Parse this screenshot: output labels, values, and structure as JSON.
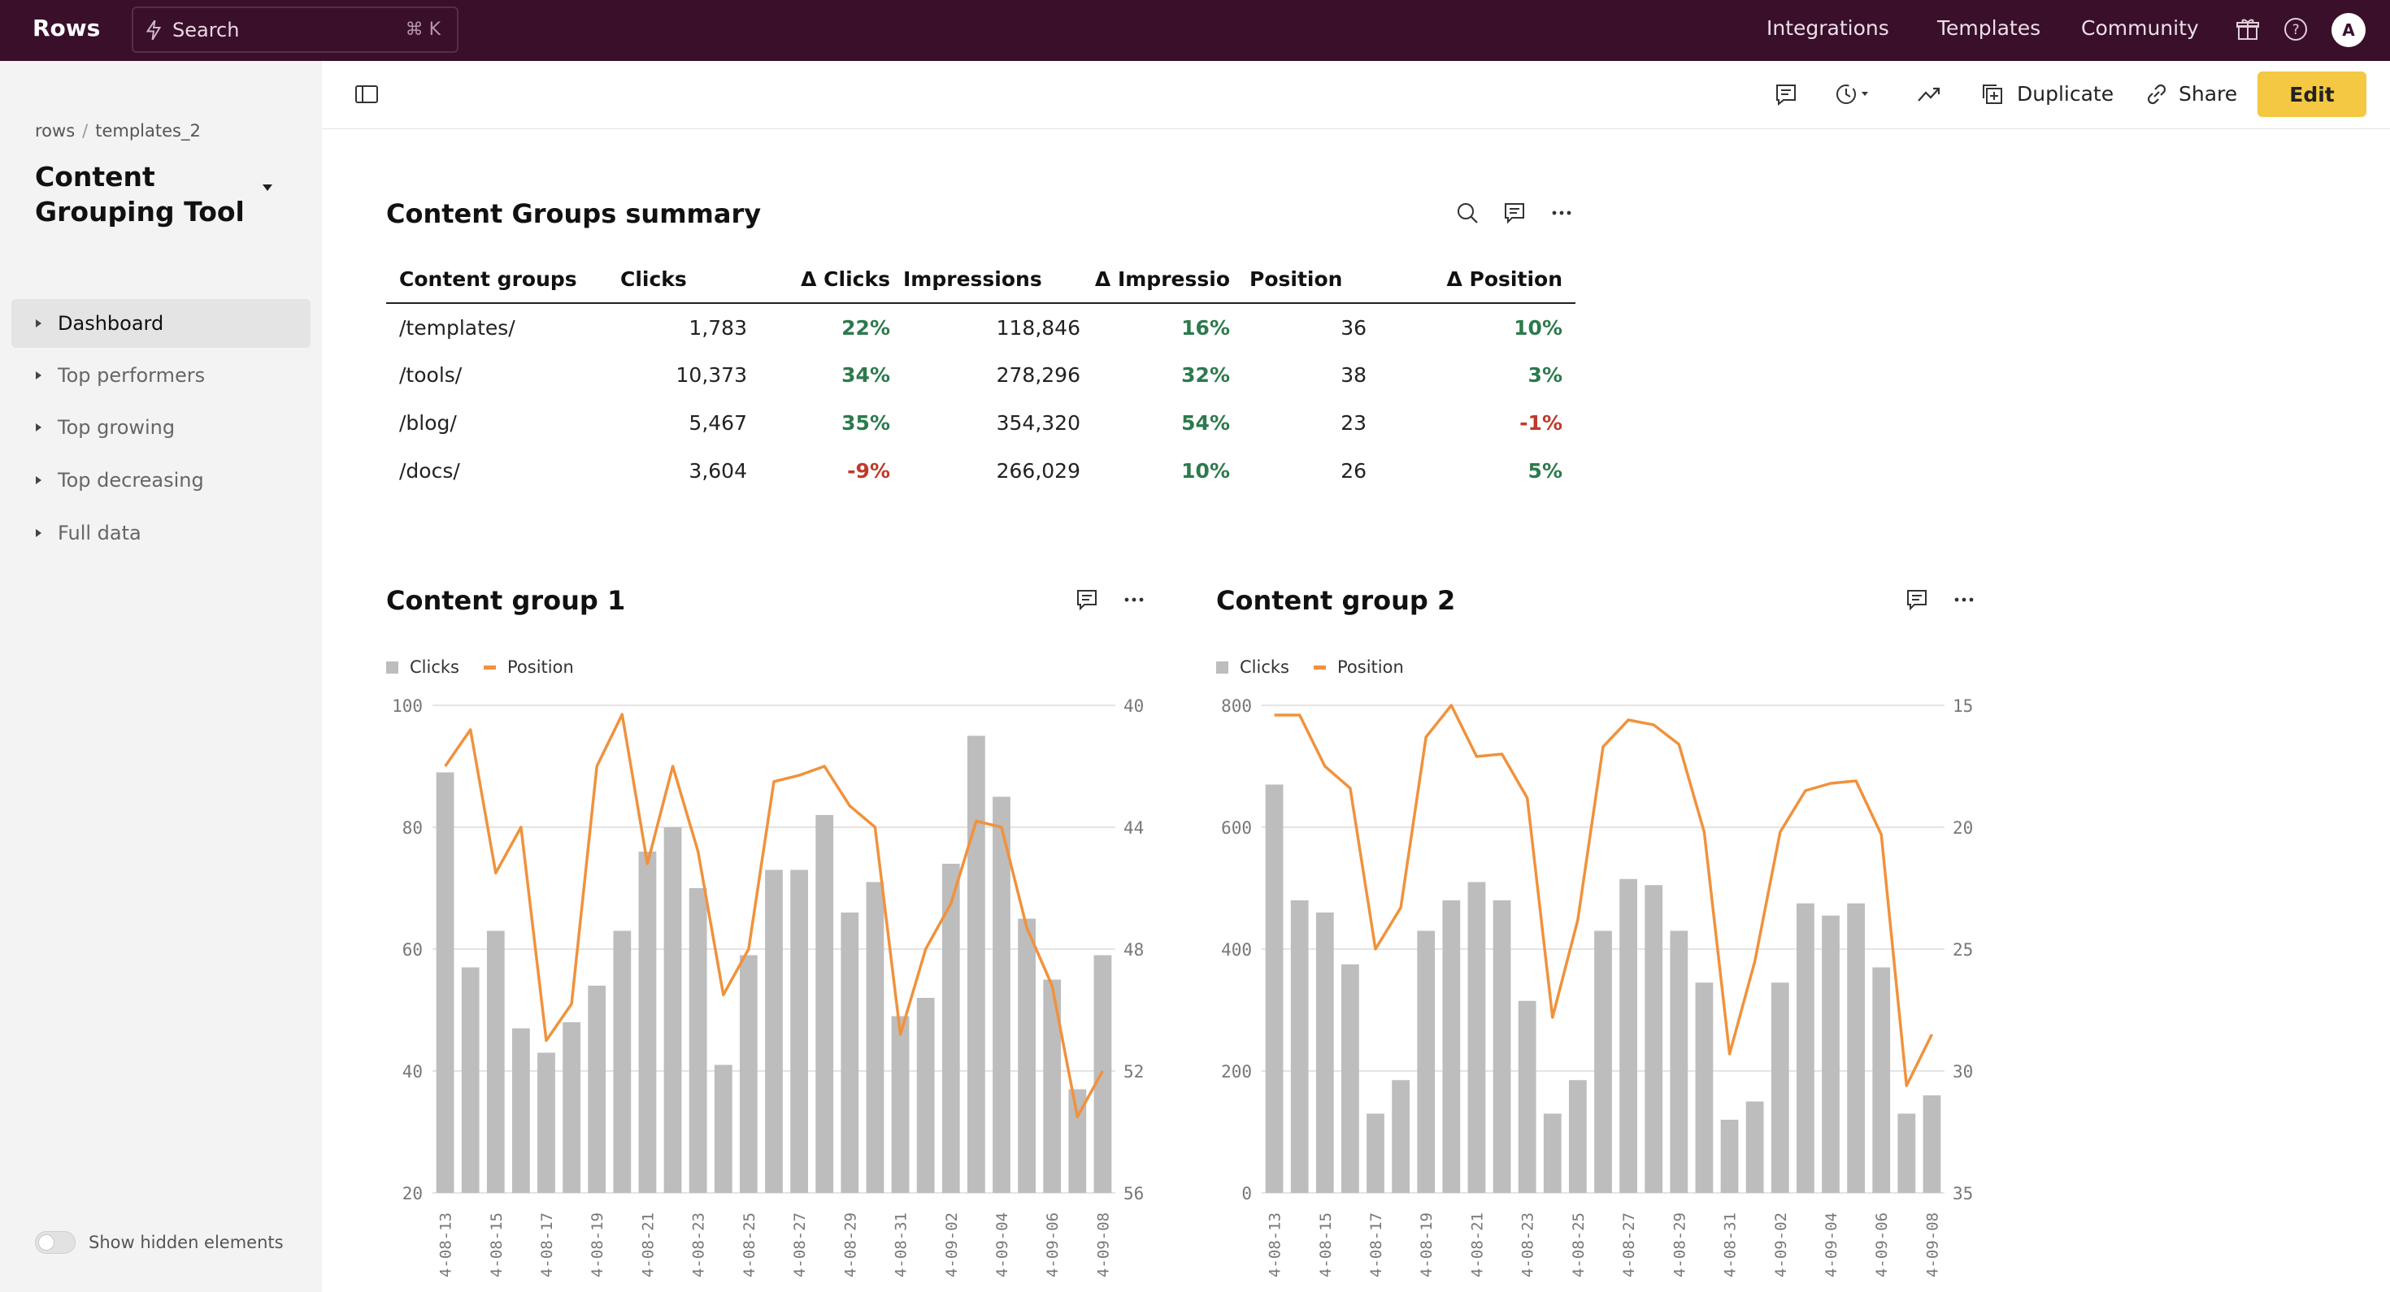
{
  "topbar": {
    "logo": "Rows",
    "search_placeholder": "Search",
    "search_shortcut": "⌘ K",
    "nav": [
      "Integrations",
      "Templates",
      "Community"
    ],
    "avatar_initial": "A"
  },
  "sidebar": {
    "breadcrumb": [
      "rows",
      "templates_2"
    ],
    "title": "Content Grouping Tool",
    "items": [
      {
        "label": "Dashboard",
        "active": true
      },
      {
        "label": "Top performers",
        "active": false
      },
      {
        "label": "Top growing",
        "active": false
      },
      {
        "label": "Top decreasing",
        "active": false
      },
      {
        "label": "Full data",
        "active": false
      }
    ],
    "show_hidden_label": "Show hidden elements"
  },
  "toolbar": {
    "duplicate_label": "Duplicate",
    "share_label": "Share",
    "edit_label": "Edit",
    "edit_color": "#f4c842"
  },
  "summary": {
    "title": "Content Groups summary",
    "columns": [
      "Content groups",
      "Clicks",
      "Δ Clicks",
      "Impressions",
      "Δ Impressio",
      "Position",
      "Δ Position"
    ],
    "rows": [
      {
        "group": "/templates/",
        "clicks": "1,783",
        "d_clicks": "22%",
        "impressions": "118,846",
        "d_impr": "16%",
        "position": "36",
        "d_pos": "10%"
      },
      {
        "group": "/tools/",
        "clicks": "10,373",
        "d_clicks": "34%",
        "impressions": "278,296",
        "d_impr": "32%",
        "position": "38",
        "d_pos": "3%"
      },
      {
        "group": "/blog/",
        "clicks": "5,467",
        "d_clicks": "35%",
        "impressions": "354,320",
        "d_impr": "54%",
        "position": "23",
        "d_pos": "-1%"
      },
      {
        "group": "/docs/",
        "clicks": "3,604",
        "d_clicks": "-9%",
        "impressions": "266,029",
        "d_impr": "10%",
        "position": "26",
        "d_pos": "5%"
      }
    ],
    "positive_color": "#2d7a4d",
    "negative_color": "#c0392b"
  },
  "chart_data": [
    {
      "type": "bar",
      "title": "Content group 1",
      "legend": [
        "Clicks",
        "Position"
      ],
      "legend_position": "top-left",
      "bar_color": "#bdbdbd",
      "line_color": "#f0923d",
      "x_tick_labels": [
        "4-08-13",
        "4-08-15",
        "4-08-17",
        "4-08-19",
        "4-08-21",
        "4-08-23",
        "4-08-25",
        "4-08-27",
        "4-08-29",
        "4-08-31",
        "4-09-02",
        "4-09-04",
        "4-09-06",
        "4-09-08"
      ],
      "ylim_left": [
        20,
        100
      ],
      "yticks_left": [
        100,
        80,
        60,
        40,
        20
      ],
      "ylim_right_inverted": [
        40,
        56
      ],
      "yticks_right": [
        40,
        44,
        48,
        52,
        56
      ],
      "grid": true,
      "series": [
        {
          "name": "Clicks",
          "axis": "left",
          "values": [
            89,
            57,
            63,
            47,
            43,
            48,
            54,
            63,
            76,
            80,
            70,
            41,
            59,
            73,
            73,
            82,
            66,
            71,
            49,
            52,
            74,
            95,
            85,
            65,
            55,
            37,
            59
          ]
        },
        {
          "name": "Position",
          "axis": "right",
          "values": [
            42.0,
            40.8,
            45.5,
            44.0,
            51.0,
            49.8,
            42.0,
            40.3,
            45.2,
            42.0,
            44.8,
            49.5,
            48.0,
            42.5,
            42.3,
            42.0,
            43.3,
            44.0,
            50.8,
            48.0,
            46.5,
            43.8,
            44.0,
            47.3,
            49.2,
            53.5,
            52.0
          ]
        }
      ]
    },
    {
      "type": "bar",
      "title": "Content group 2",
      "legend": [
        "Clicks",
        "Position"
      ],
      "legend_position": "top-left",
      "bar_color": "#bdbdbd",
      "line_color": "#f0923d",
      "x_tick_labels": [
        "4-08-13",
        "4-08-15",
        "4-08-17",
        "4-08-19",
        "4-08-21",
        "4-08-23",
        "4-08-25",
        "4-08-27",
        "4-08-29",
        "4-08-31",
        "4-09-02",
        "4-09-04",
        "4-09-06",
        "4-09-08"
      ],
      "ylim_left": [
        0,
        800
      ],
      "yticks_left": [
        800,
        600,
        400,
        200,
        0
      ],
      "ylim_right_inverted": [
        15,
        35
      ],
      "yticks_right": [
        15,
        20,
        25,
        30,
        35
      ],
      "grid": true,
      "series": [
        {
          "name": "Clicks",
          "axis": "left",
          "values": [
            670,
            480,
            460,
            375,
            130,
            185,
            430,
            480,
            510,
            480,
            315,
            130,
            185,
            430,
            515,
            505,
            430,
            345,
            120,
            150,
            345,
            475,
            455,
            475,
            370,
            130,
            160
          ]
        },
        {
          "name": "Position",
          "axis": "right",
          "values": [
            15.4,
            15.4,
            17.5,
            18.4,
            25.0,
            23.3,
            16.3,
            15.0,
            17.1,
            17.0,
            18.8,
            27.8,
            23.8,
            16.7,
            15.6,
            15.8,
            16.6,
            20.2,
            29.3,
            25.5,
            20.2,
            18.5,
            18.2,
            18.1,
            20.3,
            30.6,
            28.5
          ]
        }
      ]
    }
  ]
}
